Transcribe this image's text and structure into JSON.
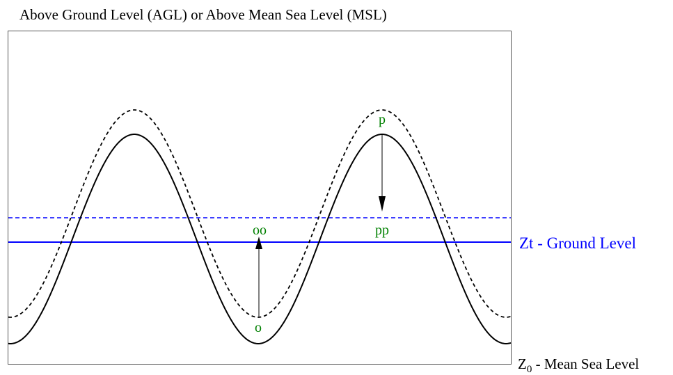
{
  "title": "Above Ground Level (AGL) or Above Mean Sea Level (MSL)",
  "labels": {
    "ground_level": "Zt - Ground Level",
    "msl_z": "Z",
    "msl_sub": "0",
    "msl_rest": " - Mean Sea Level",
    "point_p": "p",
    "point_pp": "pp",
    "point_o": "o",
    "point_oo": "oo"
  },
  "colors": {
    "terrain": "#000000",
    "ground_level": "#0000ff",
    "point_labels": "#008000",
    "frame": "#555555",
    "arrow": "#000000"
  }
}
